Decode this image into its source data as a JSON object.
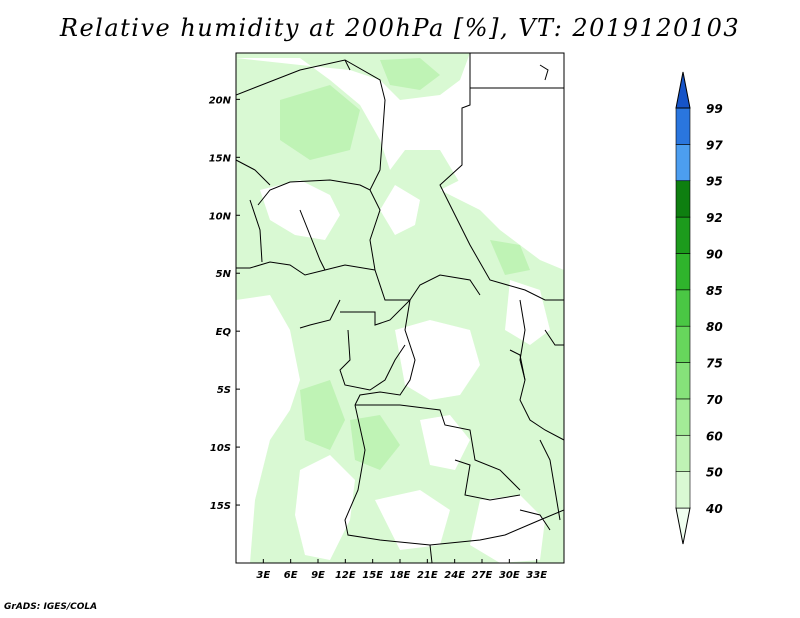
{
  "title": "Relative humidity at 200hPa [%], VT: 2019120103",
  "credit": "GrADS: IGES/COLA",
  "map": {
    "lon_range": [
      0,
      36
    ],
    "lat_range": [
      -20,
      24
    ],
    "x_ticks": [
      "3E",
      "6E",
      "9E",
      "12E",
      "15E",
      "18E",
      "21E",
      "24E",
      "27E",
      "30E",
      "33E"
    ],
    "x_tick_values": [
      3,
      6,
      9,
      12,
      15,
      18,
      21,
      24,
      27,
      30,
      33
    ],
    "y_ticks": [
      "20N",
      "15N",
      "10N",
      "5N",
      "EQ",
      "5S",
      "10S",
      "15S"
    ],
    "y_tick_values": [
      20,
      15,
      10,
      5,
      0,
      -5,
      -10,
      -15
    ]
  },
  "colorbar": {
    "levels": [
      "40",
      "50",
      "60",
      "70",
      "75",
      "80",
      "85",
      "90",
      "92",
      "95",
      "97",
      "99"
    ],
    "colors": [
      "#f0fff0",
      "#d9f9d3",
      "#bff3b5",
      "#a3ec97",
      "#86e27a",
      "#67d65c",
      "#4ac744",
      "#2fb42c",
      "#1c9b1c",
      "#0e7f10",
      "#4c9ef0",
      "#2a76de",
      "#1654c8"
    ],
    "extends": "both"
  }
}
